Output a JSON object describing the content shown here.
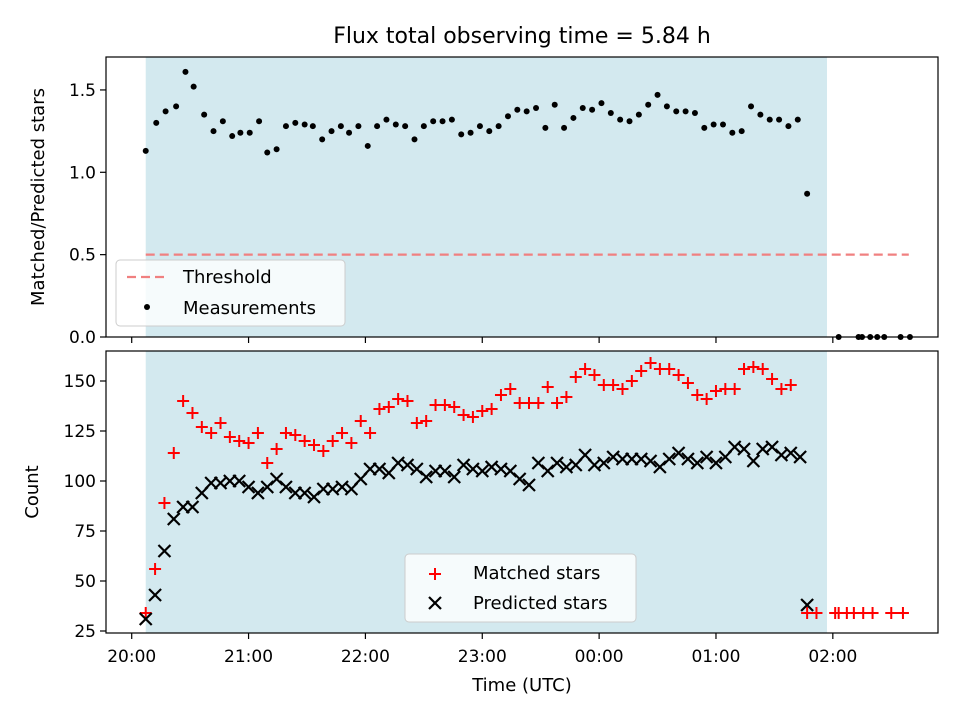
{
  "figure": {
    "title": "Flux total observing time = 5.84 h",
    "xlabel": "Time (UTC)",
    "x_ticks": [
      "20:00",
      "21:00",
      "22:00",
      "23:00",
      "00:00",
      "01:00",
      "02:00"
    ],
    "x_tick_hours": [
      20,
      21,
      22,
      23,
      24,
      25,
      26
    ],
    "xlim_hours": [
      19.78,
      26.9
    ],
    "shaded_span_hours": [
      20.12,
      25.95
    ],
    "colors": {
      "shade": "#d3e9ef",
      "threshold": "#f08080",
      "matched": "#ff0000",
      "predicted": "#000000",
      "measurement": "#000000"
    }
  },
  "chart_data": [
    {
      "type": "scatter",
      "ylabel": "Matched/Predicted stars",
      "ylim": [
        0,
        1.7
      ],
      "y_ticks": [
        "0.0",
        "0.5",
        "1.0",
        "1.5"
      ],
      "y_tick_values": [
        0,
        0.5,
        1.0,
        1.5
      ],
      "legend": {
        "position": "lower-left",
        "entries": [
          "Threshold",
          "Measurements"
        ]
      },
      "threshold": {
        "name": "Threshold",
        "value": 0.5,
        "x_range_hours": [
          20.12,
          26.65
        ]
      },
      "series": [
        {
          "name": "Measurements",
          "points": [
            [
              20.12,
              1.13
            ],
            [
              20.21,
              1.3
            ],
            [
              20.29,
              1.37
            ],
            [
              20.38,
              1.4
            ],
            [
              20.46,
              1.61
            ],
            [
              20.53,
              1.52
            ],
            [
              20.62,
              1.35
            ],
            [
              20.7,
              1.25
            ],
            [
              20.78,
              1.31
            ],
            [
              20.86,
              1.22
            ],
            [
              20.93,
              1.24
            ],
            [
              21.01,
              1.24
            ],
            [
              21.09,
              1.31
            ],
            [
              21.16,
              1.12
            ],
            [
              21.24,
              1.14
            ],
            [
              21.32,
              1.28
            ],
            [
              21.4,
              1.3
            ],
            [
              21.48,
              1.29
            ],
            [
              21.55,
              1.28
            ],
            [
              21.63,
              1.2
            ],
            [
              21.71,
              1.25
            ],
            [
              21.79,
              1.28
            ],
            [
              21.86,
              1.24
            ],
            [
              21.94,
              1.28
            ],
            [
              22.02,
              1.16
            ],
            [
              22.1,
              1.28
            ],
            [
              22.18,
              1.32
            ],
            [
              22.26,
              1.29
            ],
            [
              22.34,
              1.28
            ],
            [
              22.42,
              1.2
            ],
            [
              22.5,
              1.28
            ],
            [
              22.58,
              1.31
            ],
            [
              22.66,
              1.31
            ],
            [
              22.74,
              1.32
            ],
            [
              22.82,
              1.23
            ],
            [
              22.9,
              1.24
            ],
            [
              22.98,
              1.28
            ],
            [
              23.06,
              1.25
            ],
            [
              23.14,
              1.28
            ],
            [
              23.22,
              1.34
            ],
            [
              23.3,
              1.38
            ],
            [
              23.38,
              1.37
            ],
            [
              23.46,
              1.39
            ],
            [
              23.54,
              1.27
            ],
            [
              23.62,
              1.41
            ],
            [
              23.7,
              1.27
            ],
            [
              23.78,
              1.33
            ],
            [
              23.86,
              1.39
            ],
            [
              23.94,
              1.38
            ],
            [
              24.02,
              1.42
            ],
            [
              24.1,
              1.36
            ],
            [
              24.18,
              1.32
            ],
            [
              24.26,
              1.31
            ],
            [
              24.34,
              1.35
            ],
            [
              24.42,
              1.41
            ],
            [
              24.5,
              1.47
            ],
            [
              24.58,
              1.4
            ],
            [
              24.66,
              1.37
            ],
            [
              24.74,
              1.37
            ],
            [
              24.82,
              1.36
            ],
            [
              24.9,
              1.27
            ],
            [
              24.98,
              1.29
            ],
            [
              25.06,
              1.29
            ],
            [
              25.14,
              1.24
            ],
            [
              25.22,
              1.25
            ],
            [
              25.3,
              1.4
            ],
            [
              25.38,
              1.35
            ],
            [
              25.46,
              1.32
            ],
            [
              25.54,
              1.32
            ],
            [
              25.62,
              1.28
            ],
            [
              25.7,
              1.32
            ],
            [
              25.78,
              0.87
            ],
            [
              26.05,
              0.0
            ],
            [
              26.22,
              0.0
            ],
            [
              26.25,
              0.0
            ],
            [
              26.32,
              0.0
            ],
            [
              26.38,
              0.0
            ],
            [
              26.44,
              0.0
            ],
            [
              26.58,
              0.0
            ],
            [
              26.66,
              0.0
            ]
          ]
        }
      ]
    },
    {
      "type": "scatter",
      "ylabel": "Count",
      "ylim": [
        24,
        165
      ],
      "y_ticks": [
        "25",
        "50",
        "75",
        "100",
        "125",
        "150"
      ],
      "y_tick_values": [
        25,
        50,
        75,
        100,
        125,
        150
      ],
      "legend": {
        "position": "lower-center",
        "entries": [
          "Matched stars",
          "Predicted stars"
        ]
      },
      "series": [
        {
          "name": "Matched stars",
          "marker": "plus",
          "points": [
            [
              20.12,
              34
            ],
            [
              20.2,
              56
            ],
            [
              20.28,
              89
            ],
            [
              20.36,
              114
            ],
            [
              20.44,
              140
            ],
            [
              20.52,
              134
            ],
            [
              20.6,
              127
            ],
            [
              20.68,
              124
            ],
            [
              20.76,
              129
            ],
            [
              20.84,
              122
            ],
            [
              20.92,
              120
            ],
            [
              21.0,
              119
            ],
            [
              21.08,
              124
            ],
            [
              21.16,
              109
            ],
            [
              21.24,
              116
            ],
            [
              21.32,
              124
            ],
            [
              21.4,
              123
            ],
            [
              21.48,
              120
            ],
            [
              21.56,
              118
            ],
            [
              21.64,
              115
            ],
            [
              21.72,
              120
            ],
            [
              21.8,
              124
            ],
            [
              21.88,
              119
            ],
            [
              21.96,
              130
            ],
            [
              22.04,
              124
            ],
            [
              22.12,
              136
            ],
            [
              22.2,
              137
            ],
            [
              22.28,
              141
            ],
            [
              22.36,
              140
            ],
            [
              22.44,
              129
            ],
            [
              22.52,
              130
            ],
            [
              22.6,
              138
            ],
            [
              22.68,
              138
            ],
            [
              22.76,
              137
            ],
            [
              22.84,
              133
            ],
            [
              22.92,
              132
            ],
            [
              23.0,
              135
            ],
            [
              23.08,
              136
            ],
            [
              23.16,
              143
            ],
            [
              23.24,
              146
            ],
            [
              23.32,
              139
            ],
            [
              23.4,
              139
            ],
            [
              23.48,
              139
            ],
            [
              23.56,
              147
            ],
            [
              23.64,
              139
            ],
            [
              23.72,
              142
            ],
            [
              23.8,
              152
            ],
            [
              23.88,
              156
            ],
            [
              23.96,
              153
            ],
            [
              24.04,
              148
            ],
            [
              24.12,
              148
            ],
            [
              24.2,
              146
            ],
            [
              24.28,
              150
            ],
            [
              24.36,
              155
            ],
            [
              24.44,
              159
            ],
            [
              24.52,
              156
            ],
            [
              24.6,
              156
            ],
            [
              24.68,
              153
            ],
            [
              24.76,
              149
            ],
            [
              24.84,
              143
            ],
            [
              24.92,
              141
            ],
            [
              25.0,
              145
            ],
            [
              25.08,
              146
            ],
            [
              25.16,
              146
            ],
            [
              25.24,
              156
            ],
            [
              25.32,
              157
            ],
            [
              25.4,
              156
            ],
            [
              25.48,
              151
            ],
            [
              25.56,
              146
            ],
            [
              25.64,
              148
            ],
            [
              25.78,
              34
            ],
            [
              25.86,
              34
            ],
            [
              26.02,
              34
            ],
            [
              26.05,
              34
            ],
            [
              26.12,
              34
            ],
            [
              26.18,
              34
            ],
            [
              26.26,
              34
            ],
            [
              26.34,
              34
            ],
            [
              26.5,
              34
            ],
            [
              26.6,
              34
            ]
          ]
        },
        {
          "name": "Predicted stars",
          "marker": "x",
          "points": [
            [
              20.12,
              31
            ],
            [
              20.2,
              43
            ],
            [
              20.28,
              65
            ],
            [
              20.36,
              81
            ],
            [
              20.44,
              87
            ],
            [
              20.52,
              87
            ],
            [
              20.6,
              94
            ],
            [
              20.68,
              99
            ],
            [
              20.76,
              99
            ],
            [
              20.84,
              100
            ],
            [
              20.92,
              100
            ],
            [
              21.0,
              97
            ],
            [
              21.08,
              94
            ],
            [
              21.16,
              97
            ],
            [
              21.24,
              101
            ],
            [
              21.32,
              97
            ],
            [
              21.4,
              94
            ],
            [
              21.48,
              94
            ],
            [
              21.56,
              92
            ],
            [
              21.64,
              96
            ],
            [
              21.72,
              96
            ],
            [
              21.8,
              97
            ],
            [
              21.88,
              96
            ],
            [
              21.96,
              101
            ],
            [
              22.04,
              106
            ],
            [
              22.12,
              106
            ],
            [
              22.2,
              104
            ],
            [
              22.28,
              109
            ],
            [
              22.36,
              108
            ],
            [
              22.44,
              106
            ],
            [
              22.52,
              102
            ],
            [
              22.6,
              105
            ],
            [
              22.68,
              105
            ],
            [
              22.76,
              102
            ],
            [
              22.84,
              108
            ],
            [
              22.92,
              106
            ],
            [
              23.0,
              105
            ],
            [
              23.08,
              107
            ],
            [
              23.16,
              106
            ],
            [
              23.24,
              105
            ],
            [
              23.32,
              101
            ],
            [
              23.4,
              98
            ],
            [
              23.48,
              109
            ],
            [
              23.56,
              105
            ],
            [
              23.64,
              109
            ],
            [
              23.72,
              107
            ],
            [
              23.8,
              108
            ],
            [
              23.88,
              113
            ],
            [
              23.96,
              108
            ],
            [
              24.04,
              109
            ],
            [
              24.12,
              112
            ],
            [
              24.2,
              111
            ],
            [
              24.28,
              111
            ],
            [
              24.36,
              111
            ],
            [
              24.44,
              110
            ],
            [
              24.52,
              107
            ],
            [
              24.6,
              111
            ],
            [
              24.68,
              114
            ],
            [
              24.76,
              111
            ],
            [
              24.84,
              109
            ],
            [
              24.92,
              112
            ],
            [
              25.0,
              109
            ],
            [
              25.08,
              112
            ],
            [
              25.16,
              117
            ],
            [
              25.24,
              116
            ],
            [
              25.32,
              110
            ],
            [
              25.4,
              116
            ],
            [
              25.48,
              117
            ],
            [
              25.56,
              113
            ],
            [
              25.64,
              114
            ],
            [
              25.72,
              112
            ],
            [
              25.78,
              38
            ]
          ]
        }
      ]
    }
  ]
}
